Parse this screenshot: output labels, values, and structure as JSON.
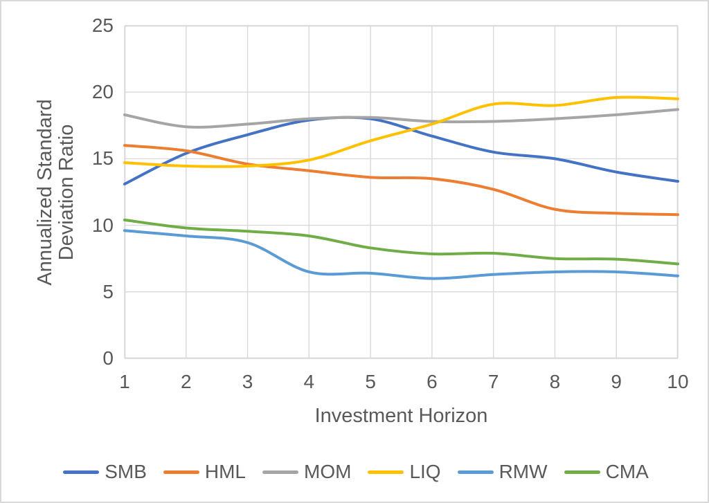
{
  "figure": {
    "y_axis_title_line1": "Annualized Standard",
    "y_axis_title_line2": "Deviation Ratio",
    "x_axis_title": "Investment Horizon"
  },
  "chart_data": {
    "type": "line",
    "title": "",
    "xlabel": "Investment Horizon",
    "ylabel": "Annualized Standard Deviation Ratio",
    "x": [
      1,
      2,
      3,
      4,
      5,
      6,
      7,
      8,
      9,
      10
    ],
    "series": [
      {
        "name": "SMB",
        "color": "#4472C4",
        "values": [
          13.1,
          15.4,
          16.8,
          17.9,
          18.0,
          16.7,
          15.5,
          15.0,
          14.0,
          13.3
        ]
      },
      {
        "name": "HML",
        "color": "#ED7D31",
        "values": [
          16.0,
          15.6,
          14.6,
          14.1,
          13.6,
          13.5,
          12.7,
          11.2,
          10.9,
          10.8
        ]
      },
      {
        "name": "MOM",
        "color": "#A5A5A5",
        "values": [
          18.3,
          17.4,
          17.6,
          18.0,
          18.1,
          17.8,
          17.8,
          18.0,
          18.3,
          18.7
        ]
      },
      {
        "name": "LIQ",
        "color": "#FFC000",
        "values": [
          14.7,
          14.45,
          14.45,
          14.9,
          16.35,
          17.6,
          19.1,
          19.0,
          19.6,
          19.5
        ]
      },
      {
        "name": "RMW",
        "color": "#5B9BD5",
        "values": [
          9.6,
          9.2,
          8.7,
          6.5,
          6.4,
          6.0,
          6.3,
          6.5,
          6.5,
          6.2
        ]
      },
      {
        "name": "CMA",
        "color": "#70AD47",
        "values": [
          10.4,
          9.8,
          9.55,
          9.2,
          8.3,
          7.85,
          7.9,
          7.5,
          7.45,
          7.1
        ]
      }
    ],
    "xlim": [
      1,
      10
    ],
    "ylim": [
      0,
      25
    ],
    "xticks": [
      1,
      2,
      3,
      4,
      5,
      6,
      7,
      8,
      9,
      10
    ],
    "yticks": [
      0,
      5,
      10,
      15,
      20,
      25
    ],
    "grid": true,
    "smooth": true,
    "legend_position": "bottom"
  },
  "style": {
    "background": "#FFFFFF",
    "border_color": "#D9D9D9",
    "gridline_color": "#D9D9D9",
    "text_color": "#595959",
    "line_width": 4
  }
}
